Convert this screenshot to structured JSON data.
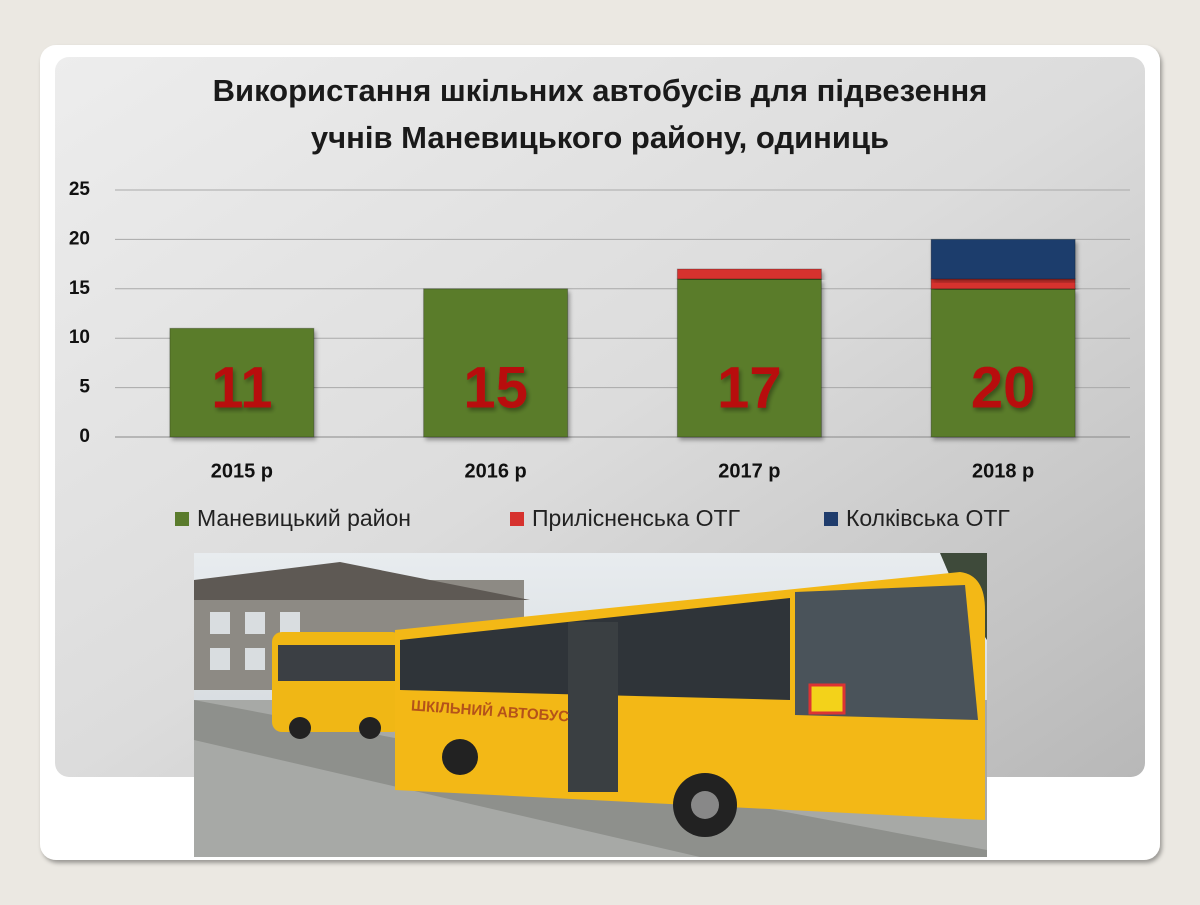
{
  "chart_data": {
    "type": "stacked-bar",
    "title": "Використання шкільних автобусів для підвезення учнів Маневицького району, одиниць",
    "title_lines": [
      "Використання шкільних автобусів для підвезення",
      "учнів Маневицького району, одиниць"
    ],
    "categories": [
      "2015 р",
      "2016 р",
      "2017 р",
      "2018 р"
    ],
    "series": [
      {
        "name": "Маневицький район",
        "color": "#5a7b2c",
        "values": [
          11,
          15,
          16,
          15
        ]
      },
      {
        "name": "Прилісненська ОТГ",
        "color": "#d6322e",
        "values": [
          0,
          0,
          1,
          1
        ]
      },
      {
        "name": "Колківська ОТГ",
        "color": "#1f3c6c",
        "values": [
          0,
          0,
          0,
          4
        ]
      }
    ],
    "totals": [
      11,
      15,
      17,
      20
    ],
    "ylim": [
      0,
      25
    ],
    "yticks": [
      0,
      5,
      10,
      15,
      20,
      25
    ],
    "grid": true,
    "legend": "bottom"
  },
  "photo": {
    "sign": "ШКІЛЬНИЙ АВТОБУС"
  }
}
